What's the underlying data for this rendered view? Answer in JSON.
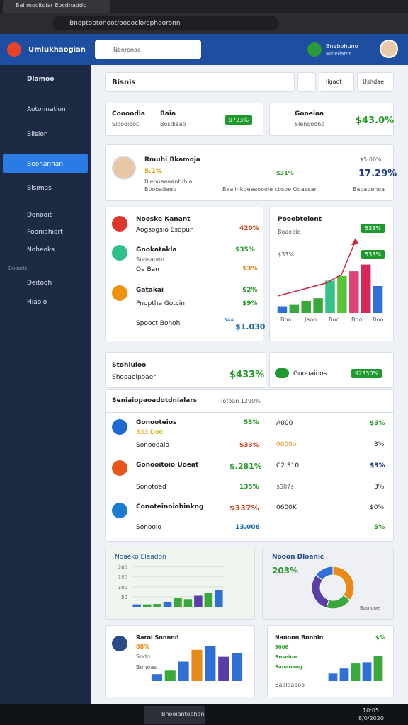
{
  "browser": {
    "tab_title": "Bai mocitoiar Eocdnaddc",
    "url": "Bnoptobtonoot/oooocio/ophaoronn"
  },
  "header": {
    "app_name": "Umlukhaogian",
    "search_placeholder": "Nenronoo",
    "user_name": "Bnebohuno",
    "user_sub": "Minedatos"
  },
  "sidebar": {
    "items": [
      "Dlamoo",
      "Aotonnation",
      "Blision",
      "Beohanhan",
      "Blsimas",
      "Donooit",
      "Pooniahiort",
      "Noheoks"
    ],
    "section": "Buoods",
    "items2": [
      "Deitooh",
      "Hiaoio"
    ]
  },
  "toolbar": {
    "search": "Bisnis",
    "buttons": [
      "Ilgaot",
      "Ushdae"
    ]
  },
  "stats": [
    {
      "title": "Coooodia",
      "sub": "Sloooiooc",
      "title2": "Baia",
      "sub2": "Bosdiaao",
      "badge": "9723%"
    },
    {
      "title": "Gooeiaa",
      "sub": "Slenqoono",
      "value": "$43.0%"
    }
  ],
  "profile": {
    "name": "Rmuhi Bkamoja",
    "change": "5.1%",
    "line1": "Bienoaaaant ibla",
    "line2": "Boooadaeu",
    "mid_value": "$31%",
    "mid_text": "Baaiinkbeaaooole cbsoe Ooaesan",
    "right_top": "$5:00%",
    "right_value": "17.29%",
    "right_sub": "Baoabehoa"
  },
  "list": [
    {
      "title": "Nooske Kanant",
      "sub": "Aogsogsio Esopun",
      "value": "420%"
    },
    {
      "title": "Gnokatakla",
      "sub": "Snoaauon",
      "sub2": "Oa Ban",
      "value": "$35%",
      "value2": "$3%"
    },
    {
      "title": "Gatakai",
      "sub": "Pnopthe Gotcin",
      "value": "$2%",
      "value2": "$9%"
    }
  ],
  "list_footer": {
    "label": "Spooct Bonoh",
    "small": "SAA",
    "value": "$1.030"
  },
  "chart_card": {
    "title": "Pooobtoiont",
    "sub": "Boaeoio",
    "badges": [
      "533%",
      "533%"
    ],
    "left_label": "$33%",
    "x_labels": [
      "Boo",
      "Jaoo",
      "Boo",
      "Boo",
      "Boo"
    ]
  },
  "summary": {
    "title": "Stohiuioo",
    "sub": "Shoaaoipoaer",
    "value": "$433%",
    "pill": "Gonoaioos",
    "badge": "92330%"
  },
  "table": {
    "title": "Seniaiopaoadotdnialars",
    "total": "Iotoan 1290%",
    "rows": [
      {
        "title": "Gonooteios",
        "sub": "333 Doo",
        "sub2": "Sonoooaio",
        "v1": "53%",
        "v2": "$33%"
      },
      {
        "title": "Gonooitoio Uoeat",
        "sub": "Sonotoed",
        "v1": "$.281%",
        "v2": "135%"
      },
      {
        "title": "Conoteinoiohinkng",
        "sub": "Sonooio",
        "v1": "$337%",
        "v2": "13.006"
      }
    ],
    "right": [
      [
        "A000",
        "$3%"
      ],
      [
        "0000o",
        "3%"
      ],
      [
        "C2.310",
        "$3%"
      ],
      [
        "$307s",
        "3%"
      ],
      [
        "0600K",
        "$0%"
      ],
      [
        "",
        "5%"
      ]
    ]
  },
  "bottom": {
    "chart_title": "Noaeko Eleadon",
    "donut_title": "Nooon Dloanic",
    "donut_value": "203%",
    "donut_label": "Baoiooe",
    "card3_title": "Rarol Sonnnd",
    "card3_value": "88%",
    "card3_lines": [
      "Sodo",
      "Bonoas"
    ],
    "card4_title": "Naooon Bonoin",
    "card4_value": "$%",
    "card4_lines": [
      "9006",
      "Boseioo",
      "Sanaoaog",
      "Baoloaooo"
    ]
  },
  "charts": [
    {
      "values": [
        10,
        12,
        18,
        22,
        48,
        55,
        62,
        72,
        40
      ],
      "colors": [
        "#2f6fd6",
        "#3aa83a",
        "#3aa83a",
        "#3aa83a",
        "#37c08a",
        "#57c43a",
        "#e0427a",
        "#d4285a",
        "#2f6fd6"
      ],
      "ylim": [
        0,
        80
      ]
    },
    {
      "values": [
        12,
        12,
        14,
        25,
        45,
        38,
        55,
        70,
        85
      ],
      "colors": [
        "#2f6fd6",
        "#3aa83a",
        "#3aa83a",
        "#2f6fd6",
        "#3aa83a",
        "#3aa83a",
        "#5a3ea8",
        "#3aa83a",
        "#2f6fd6"
      ],
      "ylim": [
        0,
        220
      ],
      "yticks": [
        50,
        100,
        150,
        200
      ]
    },
    {
      "values": [
        10,
        15,
        28,
        45,
        50,
        35,
        40
      ],
      "colors": [
        "#2f6fd6",
        "#3aa83a",
        "#2f6fd6",
        "#e88a1a",
        "#2f6fd6",
        "#5a3ea8",
        "#2f6fd6"
      ],
      "ylim": [
        0,
        55
      ]
    },
    {
      "values": [
        12,
        20,
        28,
        30,
        40
      ],
      "colors": [
        "#2f6fd6",
        "#2f6fd6",
        "#3aa83a",
        "#2f6fd6",
        "#3aa83a"
      ],
      "ylim": [
        0,
        45
      ]
    }
  ],
  "donut": {
    "values": [
      35,
      20,
      30,
      15
    ],
    "colors": [
      "#e88a1a",
      "#3aa83a",
      "#5a3ea8",
      "#2f6fd6"
    ]
  },
  "taskbar": {
    "app": "Bnooiantoohan",
    "time": "10:05",
    "date": "8/0/2020"
  }
}
